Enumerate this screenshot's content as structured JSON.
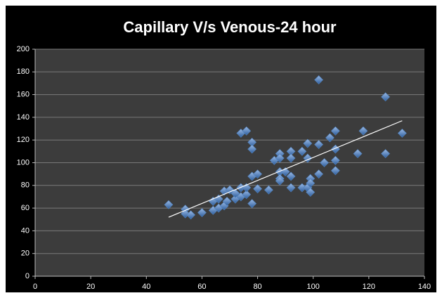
{
  "chart_data": {
    "type": "scatter",
    "title": "Capillary V/s Venous-24 hour",
    "series": [
      {
        "color": "#4f81bd",
        "x": [
          48,
          54,
          54,
          56,
          60,
          64,
          64,
          66,
          66,
          68,
          68,
          69,
          70,
          72,
          72,
          74,
          74,
          74,
          76,
          76,
          76,
          78,
          78,
          78,
          78,
          80,
          80,
          84,
          86,
          88,
          88,
          88,
          88,
          88,
          90,
          92,
          92,
          92,
          92,
          96,
          96,
          98,
          98,
          98,
          99,
          99,
          99,
          102,
          102,
          102,
          104,
          106,
          108,
          108,
          108,
          108,
          116,
          118,
          126,
          126,
          132
        ],
        "values": [
          63,
          59,
          55,
          54,
          56,
          58,
          66,
          60,
          68,
          62,
          75,
          66,
          76,
          68,
          73,
          126,
          78,
          70,
          128,
          72,
          78,
          118,
          112,
          88,
          64,
          90,
          77,
          76,
          102,
          108,
          104,
          92,
          86,
          84,
          92,
          110,
          104,
          88,
          78,
          110,
          78,
          117,
          104,
          78,
          86,
          82,
          74,
          173,
          116,
          90,
          100,
          122,
          128,
          112,
          102,
          93,
          108,
          128,
          158,
          108,
          126
        ]
      }
    ],
    "trendline": {
      "color": "#ffffff",
      "x": [
        48,
        132
      ],
      "values": [
        52,
        137
      ]
    },
    "xlim": [
      0,
      140
    ],
    "xticks": [
      0,
      20,
      40,
      60,
      80,
      100,
      120,
      140
    ],
    "ylim": [
      0,
      200
    ],
    "yticks": [
      0,
      20,
      40,
      60,
      80,
      100,
      120,
      140,
      160,
      180,
      200
    ],
    "grid": true
  }
}
